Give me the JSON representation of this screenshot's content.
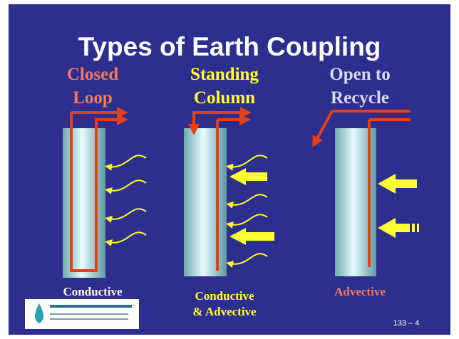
{
  "title": "Types of Earth Coupling",
  "columns": [
    {
      "heading": [
        "Closed",
        "Loop"
      ],
      "label": [
        "Conductive"
      ]
    },
    {
      "heading": [
        "Standing",
        "Column"
      ],
      "label": [
        "Conductive",
        "& Advective"
      ]
    },
    {
      "heading": [
        "Open to",
        "Recycle"
      ],
      "label": [
        "Advective"
      ]
    }
  ],
  "slide_number": "133 – 4"
}
